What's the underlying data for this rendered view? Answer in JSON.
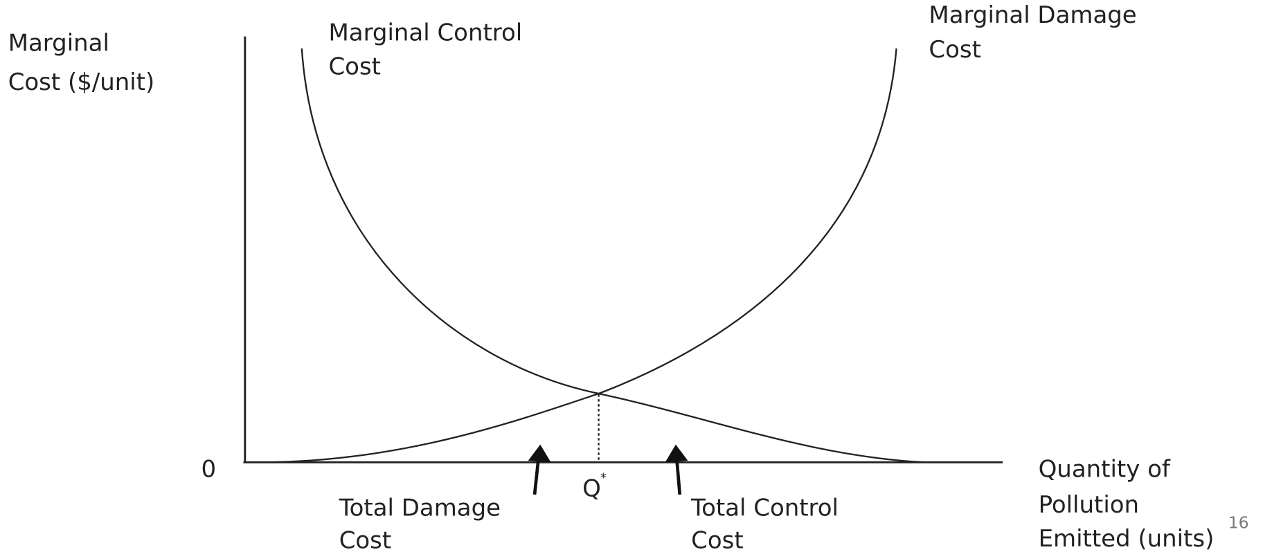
{
  "y_axis_label": [
    "Marginal",
    "Cost ($/unit)"
  ],
  "x_axis_label": [
    "Quantity of",
    "Pollution",
    "Emitted (units)"
  ],
  "origin_label": "0",
  "control_curve_label": [
    "Marginal Control",
    "Cost"
  ],
  "damage_curve_label": [
    "Marginal Damage",
    "Cost"
  ],
  "optimum_label": {
    "text": "Q",
    "superscript": "*"
  },
  "total_damage_label": [
    "Total Damage",
    "Cost"
  ],
  "total_control_label": [
    "Total Control",
    "Cost"
  ],
  "page_number": "16"
}
